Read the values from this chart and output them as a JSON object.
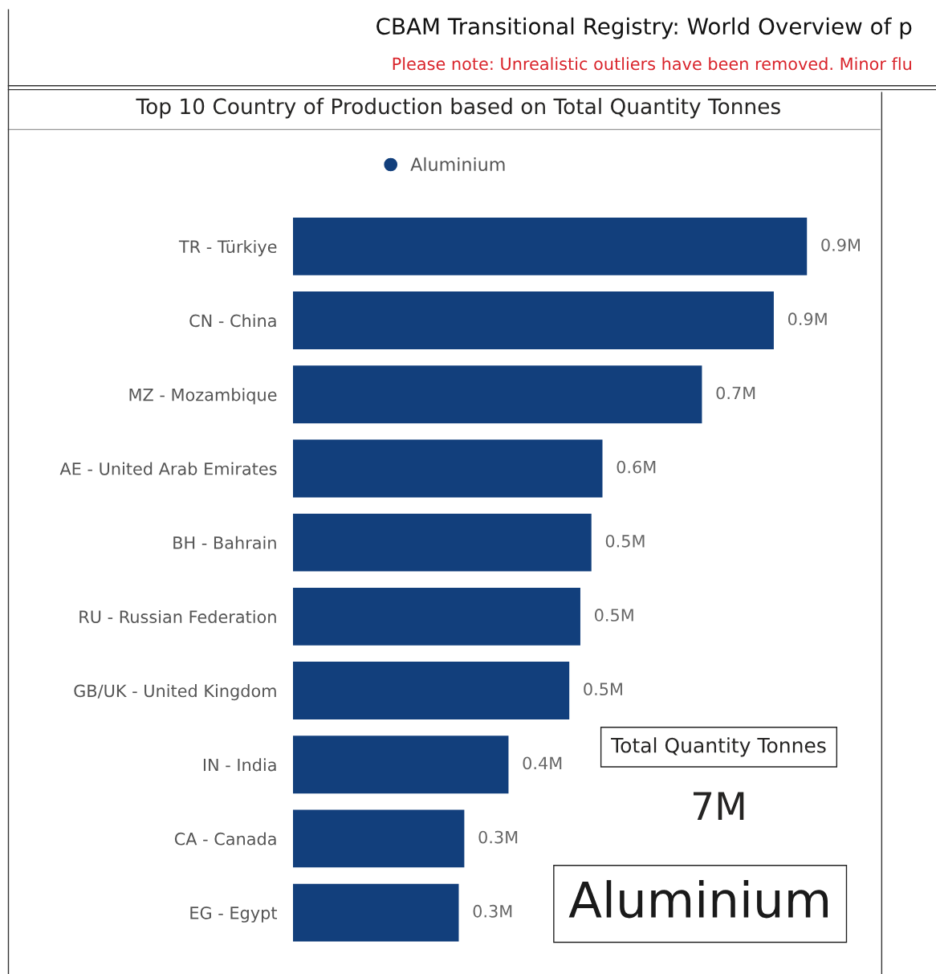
{
  "chart_data": {
    "type": "bar",
    "orientation": "horizontal",
    "title": "Top 10 Country of Production based on Total Quantity Tonnes",
    "annotations": [
      "CBAM Transitional Registry: World Overview of p",
      "Please note: Unrealistic outliers have been removed. Minor flu",
      "Total Quantity Tonnes",
      "7M",
      "Aluminium"
    ],
    "categories": [
      "TR - Türkiye",
      "CN - China",
      "MZ - Mozambique",
      "AE - United Arab Emirates",
      "BH - Bahrain",
      "RU - Russian Federation",
      "GB/UK - United Kingdom",
      "IN - India",
      "CA - Canada",
      "EG - Egypt"
    ],
    "series": [
      {
        "name": "Aluminium",
        "color": "#123f7c",
        "values": [
          0.93,
          0.87,
          0.74,
          0.56,
          0.54,
          0.52,
          0.5,
          0.39,
          0.31,
          0.3
        ],
        "value_labels": [
          "0.9M",
          "0.9M",
          "0.7M",
          "0.6M",
          "0.5M",
          "0.5M",
          "0.5M",
          "0.4M",
          "0.3M",
          "0.3M"
        ]
      }
    ],
    "legend": "top",
    "grid": false
  }
}
